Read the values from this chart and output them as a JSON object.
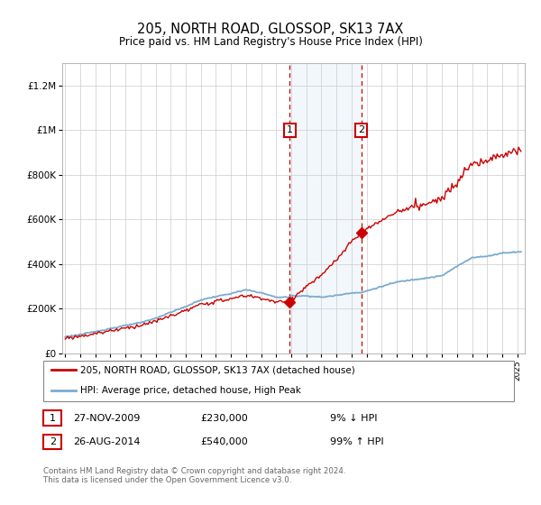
{
  "title": "205, NORTH ROAD, GLOSSOP, SK13 7AX",
  "subtitle": "Price paid vs. HM Land Registry's House Price Index (HPI)",
  "ylabel_ticks": [
    "£0",
    "£200K",
    "£400K",
    "£600K",
    "£800K",
    "£1M",
    "£1.2M"
  ],
  "ytick_values": [
    0,
    200000,
    400000,
    600000,
    800000,
    1000000,
    1200000
  ],
  "ylim": [
    0,
    1300000
  ],
  "xlim_start": 1994.8,
  "xlim_end": 2025.5,
  "sale1_x": 2009.9,
  "sale1_y": 230000,
  "sale1_label": "1",
  "sale1_date": "27-NOV-2009",
  "sale1_price": "£230,000",
  "sale1_hpi": "9% ↓ HPI",
  "sale2_x": 2014.65,
  "sale2_y": 540000,
  "sale2_label": "2",
  "sale2_date": "26-AUG-2014",
  "sale2_price": "£540,000",
  "sale2_hpi": "99% ↑ HPI",
  "legend_line1": "205, NORTH ROAD, GLOSSOP, SK13 7AX (detached house)",
  "legend_line2": "HPI: Average price, detached house, High Peak",
  "footer": "Contains HM Land Registry data © Crown copyright and database right 2024.\nThis data is licensed under the Open Government Licence v3.0.",
  "line_color_red": "#cc0000",
  "line_color_blue": "#7aabcf",
  "shading_color": "#daeaf5",
  "box_color": "#cc0000",
  "background_color": "#ffffff",
  "grid_color": "#cccccc"
}
